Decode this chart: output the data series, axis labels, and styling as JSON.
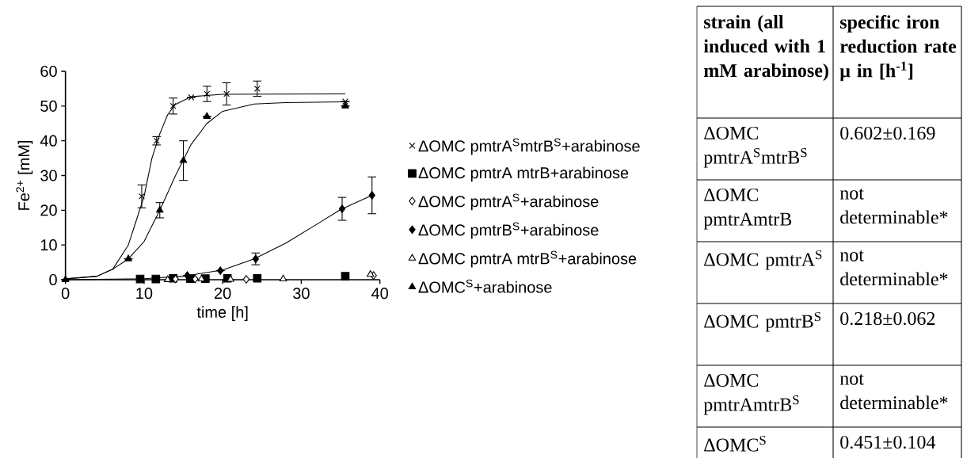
{
  "chart_data": [
    {
      "type": "scatter",
      "xlabel": "time [h]",
      "ylabel": "Fe$^{2+}$ [mM]",
      "xlim": [
        0,
        40
      ],
      "ylim": [
        0,
        60
      ],
      "xticks": [
        0,
        10,
        20,
        30,
        40
      ],
      "yticks": [
        0,
        10,
        20,
        30,
        40,
        50,
        60
      ],
      "grid": false,
      "legend": "right",
      "series": [
        {
          "type": "line",
          "color": "#000000",
          "marker": "none",
          "line_style": "solid",
          "x": [
            0,
            4,
            6,
            8,
            9,
            10,
            11,
            12,
            13,
            14,
            16,
            20,
            35.6
          ],
          "values": [
            0.3,
            1,
            3,
            10,
            17,
            24,
            35,
            42,
            47.5,
            50.5,
            52.7,
            53.4,
            53.5
          ]
        },
        {
          "type": "line",
          "color": "#000000",
          "marker": "none",
          "line_style": "solid",
          "x": [
            0,
            4,
            6,
            8,
            10,
            12,
            13,
            14,
            15,
            16,
            18,
            20,
            24,
            28,
            35.6
          ],
          "values": [
            0.2,
            1,
            3,
            6,
            11,
            20,
            25,
            30,
            34.5,
            39,
            45,
            48.5,
            50.6,
            51,
            51.2
          ]
        },
        {
          "type": "line",
          "color": "#000000",
          "marker": "none",
          "line_style": "solid",
          "x": [
            0,
            10,
            15,
            20,
            24,
            28,
            32,
            35,
            39
          ],
          "values": [
            0,
            0.3,
            1,
            2.8,
            6,
            10.5,
            16,
            20.2,
            24.3
          ]
        },
        {
          "name": "ΔOMC pmtrA$^{S}$mtrB$^{S}$+arabinose",
          "color": "#000000",
          "marker": "cross",
          "x": [
            9.7,
            11.6,
            13.7,
            16,
            18,
            20.5,
            24.4,
            35.6
          ],
          "values": [
            24,
            40,
            50,
            52.5,
            53.5,
            53.5,
            55,
            51.3
          ],
          "errors": [
            3.3,
            1.2,
            2.3,
            null,
            2.2,
            3.2,
            2.2,
            null
          ]
        },
        {
          "name": "ΔOMC pmtrA mtrB+arabinose",
          "color": "#000000",
          "marker": "square",
          "x": [
            9.5,
            11.5,
            13.7,
            15.9,
            17.8,
            20.6,
            24.4,
            35.6
          ],
          "values": [
            0.2,
            0.2,
            0.4,
            0.3,
            0.3,
            0.4,
            0.4,
            1
          ]
        },
        {
          "name": "ΔOMC pmtrA$^{S}$+arabinose",
          "color": "#ffffff",
          "marker": "diamond",
          "x": [
            14,
            16.5,
            23,
            39.2
          ],
          "values": [
            0.2,
            0.2,
            0.1,
            1.2
          ]
        },
        {
          "name": "ΔOMC pmtrB$^{S}$+arabinose",
          "color": "#000000",
          "marker": "diamond",
          "x": [
            15.5,
            19.7,
            24.2,
            35.2,
            39
          ],
          "values": [
            1.2,
            2.6,
            6,
            20.4,
            24.3
          ],
          "errors": [
            null,
            null,
            1.7,
            3.3,
            5.3
          ]
        },
        {
          "name": "ΔOMC pmtrA mtrB$^{S}$+arabinose",
          "color": "#ffffff",
          "marker": "triangle",
          "x": [
            13,
            17.3,
            21,
            27.7,
            38.8
          ],
          "values": [
            0,
            0.2,
            0.1,
            0.2,
            1.5
          ]
        },
        {
          "name": "ΔOMC$^{S}$+arabinose",
          "color": "#000000",
          "marker": "triangle",
          "x": [
            0,
            8,
            12,
            15,
            18,
            35.6
          ],
          "values": [
            0,
            6,
            20,
            34.3,
            47,
            50
          ],
          "errors": [
            null,
            null,
            2.2,
            5.7,
            null,
            null
          ]
        }
      ]
    },
    {
      "type": "other",
      "annotations": [
        "strain (all induced with 1 mM arabinose)",
        "specific iron reduction rate μ in [h$^{-1}$]",
        "ΔOMC pmtrA$^{S}$mtrB$^{S}$",
        "0.602±0.169",
        "ΔOMC pmtrAmtrB",
        "not determinable*",
        "ΔOMC pmtrA$^{S}$",
        "not determinable*",
        "ΔOMC pmtrB$^{S}$",
        "0.218±0.062",
        "ΔOMC pmtrAmtrB$^{S}$",
        "not determinable*",
        "ΔOMC$^{S}$",
        "0.451±0.104"
      ]
    }
  ]
}
